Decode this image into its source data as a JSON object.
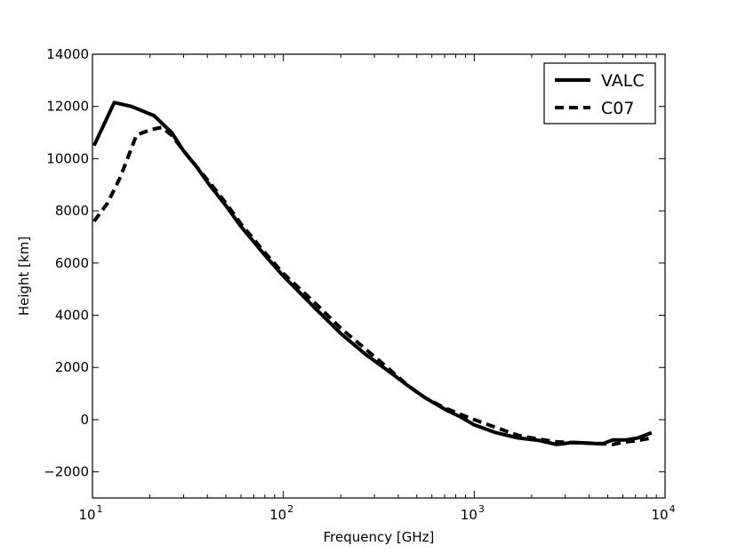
{
  "chart_data": {
    "type": "line",
    "title": "",
    "xlabel": "Frequency [GHz]",
    "ylabel": "Height [km]",
    "xscale": "log",
    "xlim": [
      10,
      10000
    ],
    "ylim": [
      -3000,
      14000
    ],
    "grid": false,
    "legend_position": "top-right",
    "x_ticks": [
      {
        "value": 10,
        "base": "10",
        "exp": "1"
      },
      {
        "value": 100,
        "base": "10",
        "exp": "2"
      },
      {
        "value": 1000,
        "base": "10",
        "exp": "3"
      },
      {
        "value": 10000,
        "base": "10",
        "exp": "4"
      }
    ],
    "y_ticks": [
      {
        "value": -2000,
        "label": "−2000"
      },
      {
        "value": 0,
        "label": "0"
      },
      {
        "value": 2000,
        "label": "2000"
      },
      {
        "value": 4000,
        "label": "4000"
      },
      {
        "value": 6000,
        "label": "6000"
      },
      {
        "value": 8000,
        "label": "8000"
      },
      {
        "value": 10000,
        "label": "10000"
      },
      {
        "value": 12000,
        "label": "12000"
      },
      {
        "value": 14000,
        "label": "14000"
      }
    ],
    "series": [
      {
        "name": "VALC",
        "style": "solid",
        "x": [
          10.2,
          13,
          16,
          21,
          26,
          30,
          35,
          41,
          50,
          60,
          80,
          100,
          150,
          200,
          270,
          350,
          450,
          550,
          700,
          850,
          1000,
          1300,
          1700,
          2200,
          2700,
          3300,
          4000,
          4700,
          5300,
          6200,
          7200,
          8500
        ],
        "y": [
          10500,
          12150,
          12000,
          11650,
          11000,
          10300,
          9700,
          9000,
          8200,
          7400,
          6300,
          5500,
          4200,
          3300,
          2500,
          1900,
          1300,
          850,
          400,
          100,
          -200,
          -500,
          -700,
          -800,
          -950,
          -870,
          -900,
          -930,
          -780,
          -780,
          -700,
          -500
        ]
      },
      {
        "name": "C07",
        "style": "dashed",
        "x": [
          10.2,
          12,
          14,
          17,
          20,
          23,
          26,
          30,
          35,
          41,
          50,
          60,
          80,
          100,
          150,
          200,
          270,
          350,
          450,
          550,
          700,
          850,
          1000,
          1300,
          1700,
          2200,
          2700,
          3300,
          4000,
          4700,
          5300,
          6200,
          7200,
          8500
        ],
        "y": [
          7600,
          8300,
          9300,
          10900,
          11100,
          11200,
          10900,
          10300,
          9700,
          9100,
          8300,
          7500,
          6400,
          5600,
          4400,
          3500,
          2700,
          2000,
          1300,
          850,
          450,
          200,
          0,
          -300,
          -600,
          -750,
          -850,
          -880,
          -900,
          -920,
          -950,
          -850,
          -800,
          -700
        ]
      }
    ]
  }
}
